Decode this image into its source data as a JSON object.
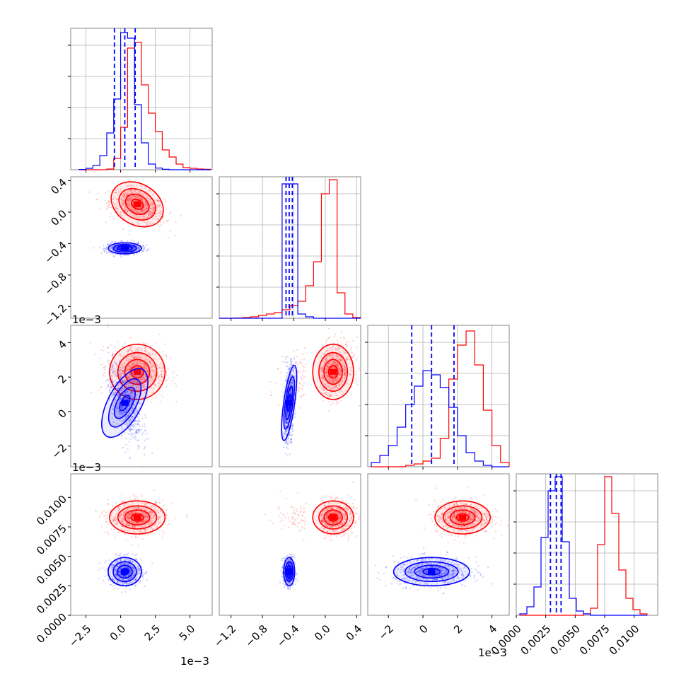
{
  "figure": {
    "background": "#ffffff"
  },
  "colors": {
    "series_a": "#0000ff",
    "series_b": "#ff0000",
    "grid": "#b0b0b0"
  },
  "chart_data": {
    "type": "corner",
    "parameters": [
      {
        "ticks": [
          "−2.5",
          "0.0",
          "2.5",
          "5.0"
        ],
        "tick_values": [
          -2.5,
          0.0,
          2.5,
          5.0
        ],
        "range": [
          -3.6,
          6.6
        ],
        "offset": "1e−3"
      },
      {
        "ticks": [
          "−1.2",
          "−0.8",
          "−0.4",
          "0.0",
          "0.4"
        ],
        "tick_values": [
          -1.2,
          -0.8,
          -0.4,
          0.0,
          0.4
        ],
        "range": [
          -1.35,
          0.45
        ],
        "offset": "1e−3"
      },
      {
        "ticks": [
          "−2",
          "0",
          "2",
          "4"
        ],
        "tick_values": [
          -2,
          0,
          2,
          4
        ],
        "range": [
          -3.2,
          5.0
        ],
        "offset": "1e−3"
      },
      {
        "ticks": [
          "0.0000",
          "0.0025",
          "0.0050",
          "0.0075",
          "0.0100"
        ],
        "tick_values": [
          0.0,
          0.0025,
          0.005,
          0.0075,
          0.01
        ],
        "range": [
          0.0,
          0.012
        ],
        "offset": ""
      }
    ],
    "series": [
      {
        "color": "#0000ff",
        "mean": [
          0.3,
          -0.46,
          0.5,
          0.0037
        ],
        "std": [
          0.6,
          0.035,
          1.1,
          0.0006
        ],
        "quantiles": [
          [
            -0.45,
            0.3,
            1.05
          ],
          [
            -0.5,
            -0.46,
            -0.42
          ],
          [
            -0.65,
            0.5,
            1.8
          ],
          [
            0.0029,
            0.0034,
            0.0038
          ]
        ]
      },
      {
        "color": "#ff0000",
        "mean": [
          1.2,
          0.1,
          2.3,
          0.0083
        ],
        "std": [
          1.0,
          0.13,
          0.8,
          0.0007
        ]
      }
    ],
    "histograms": [
      {
        "bins": [
          -2.75,
          -2.25,
          -1.75,
          -1.25,
          -0.75,
          -0.25,
          0.25,
          0.75,
          1.25,
          1.75,
          2.25,
          2.75,
          3.25,
          3.75,
          4.25,
          4.75,
          5.25,
          5.75,
          6.25
        ],
        "series_a": [
          0.002,
          0.01,
          0.03,
          0.1,
          0.26,
          0.5,
          0.97,
          0.93,
          0.46,
          0.19,
          0.04,
          0.012,
          0.003,
          0,
          0,
          0,
          0,
          0,
          0
        ],
        "series_b": [
          0,
          0,
          0,
          0,
          0.005,
          0.08,
          0.3,
          0.86,
          0.9,
          0.6,
          0.4,
          0.27,
          0.14,
          0.09,
          0.04,
          0.015,
          0.01,
          0.005,
          0.003
        ]
      },
      {
        "bins": [
          -1.3,
          -1.2,
          -1.1,
          -1.0,
          -0.9,
          -0.8,
          -0.7,
          -0.6,
          -0.5,
          -0.4,
          -0.3,
          -0.2,
          -0.1,
          0.0,
          0.1,
          0.2,
          0.3,
          0.4
        ],
        "series_a": [
          0,
          0,
          0,
          0,
          0,
          0,
          0,
          0,
          0.95,
          0.95,
          0.03,
          0.01,
          0,
          0,
          0,
          0,
          0,
          0
        ],
        "series_b": [
          0,
          0,
          0.002,
          0.005,
          0.01,
          0.02,
          0.03,
          0.04,
          0.06,
          0.09,
          0.12,
          0.23,
          0.4,
          0.88,
          0.98,
          0.18,
          0.03,
          0.005
        ]
      },
      {
        "bins": [
          -2.75,
          -2.25,
          -1.75,
          -1.25,
          -0.75,
          -0.25,
          0.25,
          0.75,
          1.25,
          1.75,
          2.25,
          2.75,
          3.25,
          3.75,
          4.25,
          4.75
        ],
        "series_a": [
          0.03,
          0.08,
          0.15,
          0.28,
          0.44,
          0.57,
          0.68,
          0.65,
          0.56,
          0.42,
          0.22,
          0.1,
          0.04,
          0.01,
          0,
          0
        ],
        "series_b": [
          0,
          0,
          0,
          0,
          0.01,
          0.02,
          0.04,
          0.06,
          0.2,
          0.62,
          0.86,
          0.96,
          0.72,
          0.4,
          0.15,
          0.03
        ]
      },
      {
        "bins": [
          0.0006,
          0.0012,
          0.0018,
          0.0024,
          0.003,
          0.0036,
          0.0042,
          0.0048,
          0.0054,
          0.006,
          0.0066,
          0.0072,
          0.0078,
          0.0084,
          0.009,
          0.0096,
          0.0102,
          0.0108
        ],
        "series_a": [
          0.01,
          0.06,
          0.2,
          0.55,
          0.88,
          0.98,
          0.52,
          0.12,
          0.03,
          0.01,
          0,
          0,
          0,
          0,
          0,
          0,
          0,
          0
        ],
        "series_b": [
          0,
          0,
          0,
          0,
          0,
          0,
          0,
          0,
          0,
          0.01,
          0.05,
          0.5,
          0.98,
          0.72,
          0.32,
          0.12,
          0.04,
          0.01
        ]
      }
    ]
  }
}
